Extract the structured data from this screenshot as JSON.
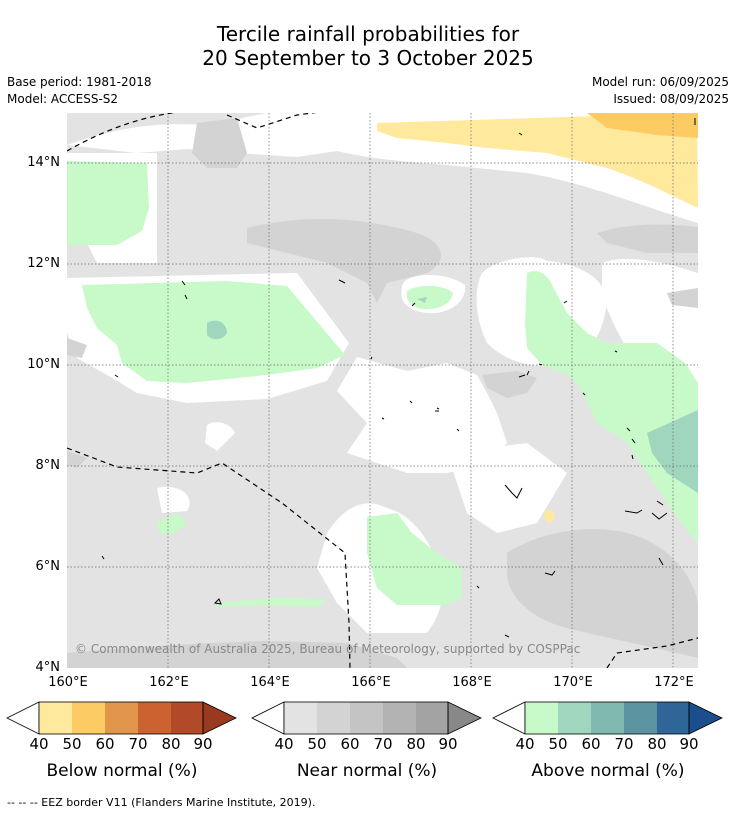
{
  "title": {
    "line1": "Tercile rainfall probabilities for",
    "line2": "20 September to 3 October 2025"
  },
  "meta": {
    "base_period": "Base period: 1981-2018",
    "model": "Model: ACCESS-S2",
    "model_run": "Model run: 06/09/2025",
    "issued": "Issued: 08/09/2025"
  },
  "map": {
    "copyright": "© Commonwealth of Australia 2025, Bureau of Meteorology, supported by COSPPac",
    "lat_ticks": [
      "14°N",
      "12°N",
      "10°N",
      "8°N",
      "6°N",
      "4°N"
    ],
    "lon_ticks": [
      "160°E",
      "162°E",
      "164°E",
      "166°E",
      "168°E",
      "170°E",
      "172°E"
    ],
    "colors": {
      "near_normal_40": "#e3e3e3",
      "near_normal_50": "#d3d3d3",
      "above_40": "#c8f9c8",
      "above_50": "#a0d6bd",
      "below_40": "#fee99c",
      "below_50": "#fdcb63"
    }
  },
  "colorbars": [
    {
      "title": "Below normal (%)",
      "ticks": [
        "40",
        "50",
        "60",
        "70",
        "80",
        "90"
      ],
      "colors": [
        "#fee99c",
        "#fdcb63",
        "#e1964c",
        "#cd6231",
        "#b24a2a",
        "#993a20"
      ]
    },
    {
      "title": "Near normal (%)",
      "ticks": [
        "40",
        "50",
        "60",
        "70",
        "80",
        "90"
      ],
      "colors": [
        "#e3e3e3",
        "#d3d3d3",
        "#c4c4c4",
        "#b3b3b3",
        "#a3a3a3",
        "#888888"
      ]
    },
    {
      "title": "Above normal (%)",
      "ticks": [
        "40",
        "50",
        "60",
        "70",
        "80",
        "90"
      ],
      "colors": [
        "#c8f9c8",
        "#a0d6bd",
        "#7fb9b0",
        "#5c93a0",
        "#2e6698",
        "#1a4e8c"
      ]
    }
  ],
  "footer": "--  --  -- EEZ border V11 (Flanders Marine Institute, 2019)."
}
